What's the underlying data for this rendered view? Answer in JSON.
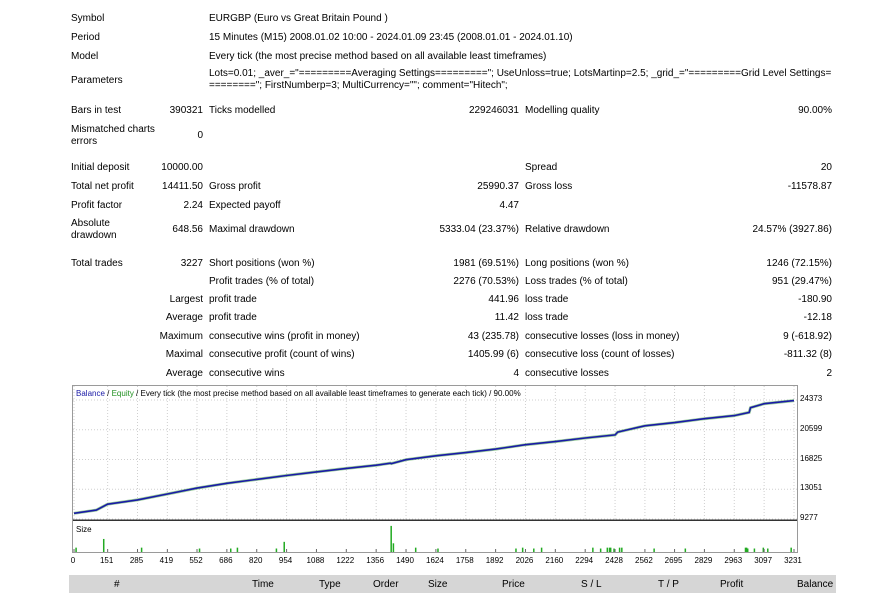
{
  "header": {
    "symbol_label": "Symbol",
    "symbol_value": "EURGBP (Euro vs Great Britain Pound )",
    "period_label": "Period",
    "period_value": "15 Minutes (M15) 2008.01.02 10:00 - 2024.01.09 23:45 (2008.01.01 - 2024.01.10)",
    "model_label": "Model",
    "model_value": "Every tick (the most precise method based on all available least timeframes)",
    "parameters_label": "Parameters",
    "parameters_value": "Lots=0.01; _aver_=\"=========Averaging Settings=========\"; UseUnloss=true; LotsMartinp=2.5; _grid_=\"=========Grid Level Settings=========\"; FirstNumberp=3; MultiCurrency=\"\"; comment=\"Hitech\";"
  },
  "stats": {
    "bars_label": "Bars in test",
    "bars_value": "390321",
    "ticks_label": "Ticks modelled",
    "ticks_value": "229246031",
    "quality_label": "Modelling quality",
    "quality_value": "90.00%",
    "mismatch_label": "Mismatched charts errors",
    "mismatch_value": "0",
    "deposit_label": "Initial deposit",
    "deposit_value": "10000.00",
    "spread_label": "Spread",
    "spread_value": "20",
    "net_label": "Total net profit",
    "net_value": "14411.50",
    "gross_profit_label": "Gross profit",
    "gross_profit_value": "25990.37",
    "gross_loss_label": "Gross loss",
    "gross_loss_value": "-11578.87",
    "pf_label": "Profit factor",
    "pf_value": "2.24",
    "payoff_label": "Expected payoff",
    "payoff_value": "4.47",
    "abs_dd_label": "Absolute drawdown",
    "abs_dd_value": "648.56",
    "max_dd_label": "Maximal drawdown",
    "max_dd_value": "5333.04 (23.37%)",
    "rel_dd_label": "Relative drawdown",
    "rel_dd_value": "24.57% (3927.86)",
    "trades_label": "Total trades",
    "trades_value": "3227",
    "short_label": "Short positions (won %)",
    "short_value": "1981 (69.51%)",
    "long_label": "Long positions (won %)",
    "long_value": "1246 (72.15%)",
    "ptrades_label": "Profit trades (% of total)",
    "ptrades_value": "2276 (70.53%)",
    "ltrades_label": "Loss trades (% of total)",
    "ltrades_value": "951 (29.47%)",
    "largest_label": "Largest",
    "largest_profit_label": "profit trade",
    "largest_profit_value": "441.96",
    "largest_loss_label": "loss trade",
    "largest_loss_value": "-180.90",
    "average_label": "Average",
    "avg_profit_label": "profit trade",
    "avg_profit_value": "11.42",
    "avg_loss_label": "loss trade",
    "avg_loss_value": "-12.18",
    "maximum_label": "Maximum",
    "max_wins_label": "consecutive wins (profit in money)",
    "max_wins_value": "43 (235.78)",
    "max_losses_label": "consecutive losses (loss in money)",
    "max_losses_value": "9 (-618.92)",
    "maximal_label": "Maximal",
    "maximal_profit_label": "consecutive profit (count of wins)",
    "maximal_profit_value": "1405.99 (6)",
    "maximal_loss_label": "consecutive loss (count of losses)",
    "maximal_loss_value": "-811.32 (8)",
    "average2_label": "Average",
    "avg_wins_label": "consecutive wins",
    "avg_wins_value": "4",
    "avg_losses_label": "consecutive losses",
    "avg_losses_value": "2"
  },
  "chart": {
    "legend_balance": "Balance",
    "legend_sep1": " / ",
    "legend_equity": "Equity",
    "legend_rest": " / Every tick (the most precise method based on all available least timeframes to generate each tick) / 90.00%",
    "size_label": "Size",
    "balance_color": "#1a1aa6",
    "equity_color": "#1f8f1f",
    "size_color": "#22aa22"
  },
  "chart_data": {
    "type": "line",
    "title": "Balance / Equity / Every tick (the most precise method based on all available least timeframes to generate each tick) / 90.00%",
    "y_ticks": [
      "24373",
      "20599",
      "16825",
      "13051",
      "9277"
    ],
    "x_ticks": [
      "0",
      "151",
      "285",
      "419",
      "552",
      "686",
      "820",
      "954",
      "1088",
      "1222",
      "1356",
      "1490",
      "1624",
      "1758",
      "1892",
      "2026",
      "2160",
      "2294",
      "2428",
      "2562",
      "2695",
      "2829",
      "2963",
      "3097",
      "3231"
    ],
    "xlim": [
      0,
      3240
    ],
    "ylim": [
      9277,
      24373
    ],
    "series": [
      {
        "name": "Balance",
        "x": [
          0,
          100,
          151,
          285,
          419,
          552,
          686,
          820,
          954,
          1088,
          1222,
          1356,
          1420,
          1424,
          1490,
          1624,
          1758,
          1892,
          2026,
          2160,
          2294,
          2428,
          2440,
          2562,
          2695,
          2829,
          2963,
          3030,
          3036,
          3097,
          3231
        ],
        "y": [
          10000,
          10400,
          11150,
          11700,
          12450,
          13200,
          13800,
          14300,
          14800,
          15250,
          15700,
          16100,
          16350,
          16300,
          16800,
          17300,
          17700,
          18150,
          18700,
          19100,
          19550,
          19950,
          20300,
          21100,
          21500,
          22000,
          22400,
          22800,
          23400,
          23900,
          24300
        ]
      }
    ],
    "size_bars_x": [
      6,
      130,
      300,
      560,
      700,
      730,
      905,
      940,
      1420,
      1430,
      1530,
      1630,
      1980,
      2010,
      2060,
      2095,
      2325,
      2360,
      2390,
      2400,
      2405,
      2420,
      2445,
      2455,
      2600,
      2740,
      3010,
      3015,
      3020,
      3050,
      3090,
      3110,
      3215
    ],
    "size_bars_h": [
      0.15,
      0.45,
      0.15,
      0.12,
      0.12,
      0.15,
      0.12,
      0.35,
      0.9,
      0.3,
      0.15,
      0.12,
      0.12,
      0.15,
      0.12,
      0.15,
      0.15,
      0.12,
      0.15,
      0.15,
      0.15,
      0.12,
      0.15,
      0.15,
      0.12,
      0.12,
      0.15,
      0.15,
      0.12,
      0.12,
      0.15,
      0.12,
      0.15
    ]
  },
  "table_header": [
    "#",
    "Time",
    "Type",
    "Order",
    "Size",
    "Price",
    "S / L",
    "T / P",
    "Profit",
    "Balance"
  ]
}
